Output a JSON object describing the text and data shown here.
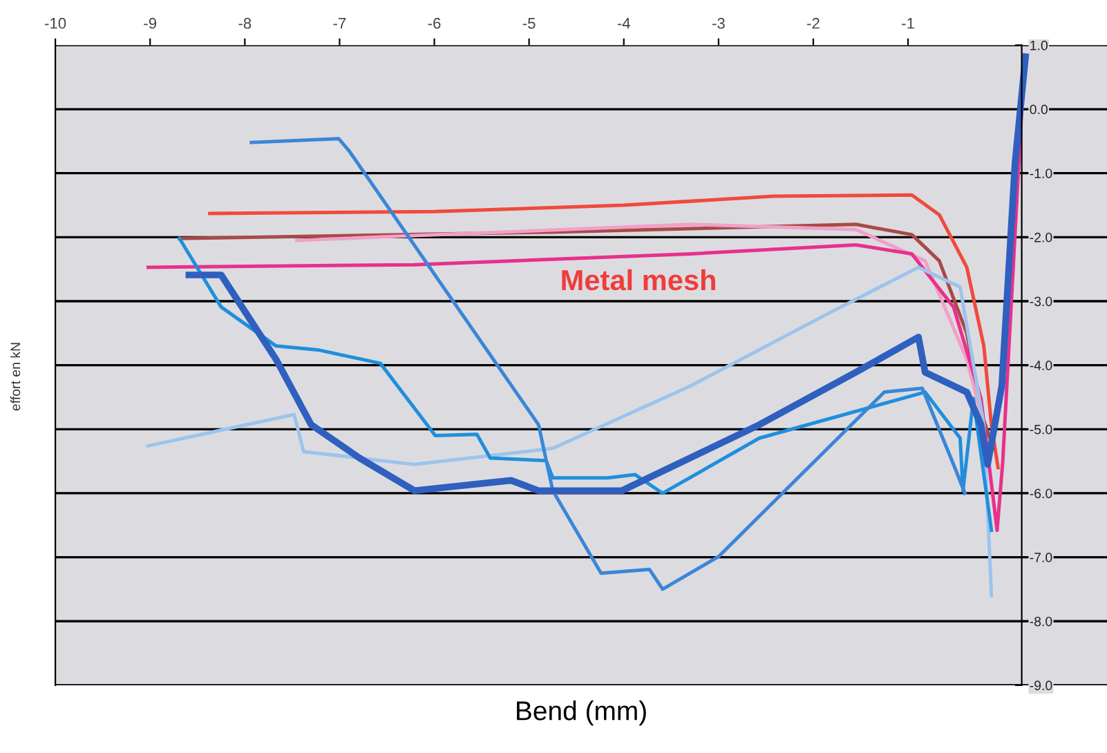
{
  "chart_data": {
    "type": "line",
    "xlabel": "Bend (mm)",
    "ylabel": "effort en kN",
    "xlim": [
      -10,
      1.1
    ],
    "ylim": [
      -9,
      1
    ],
    "xticks": [
      -10,
      -9,
      -8,
      -7,
      -6,
      -5,
      -4,
      -3,
      -2,
      -1
    ],
    "yticks": [
      {
        "value": 1,
        "label": "1.0"
      },
      {
        "value": 0,
        "label": "0.0"
      },
      {
        "value": -1,
        "label": "-1.0"
      },
      {
        "value": -2,
        "label": "-2.0"
      },
      {
        "value": -3,
        "label": "-3.0"
      },
      {
        "value": -4,
        "label": "-4.0"
      },
      {
        "value": -5,
        "label": "-5.0"
      },
      {
        "value": -6,
        "label": "-6.0"
      },
      {
        "value": -7,
        "label": "-7.0"
      },
      {
        "value": -8,
        "label": "-8.0"
      },
      {
        "value": -9,
        "label": "-9.0"
      }
    ],
    "grid": "y",
    "legend": false,
    "annotations": [
      "Metal mesh"
    ],
    "series": [
      {
        "color": "#f04a3c",
        "x": [
          -8.37,
          -6,
          -4,
          -2.42,
          -0.96,
          -0.67,
          -0.38,
          -0.2,
          -0.12,
          -0.05
        ],
        "values": [
          -1.63,
          -1.6,
          -1.5,
          -1.36,
          -1.34,
          -1.65,
          -2.47,
          -3.7,
          -4.93,
          -5.6
        ]
      },
      {
        "color": "#a84a48",
        "x": [
          -8.69,
          -4.75,
          -1.55,
          -0.96,
          -0.67,
          -0.38,
          -0.23,
          -0.1
        ],
        "values": [
          -2.02,
          -1.92,
          -1.8,
          -1.96,
          -2.37,
          -3.5,
          -4.73,
          -5.3
        ]
      },
      {
        "color": "#f2a0c8",
        "x": [
          -7.45,
          -3.29,
          -1.55,
          -0.82,
          -0.38,
          -0.2
        ],
        "values": [
          -2.05,
          -1.8,
          -1.88,
          -2.37,
          -3.91,
          -4.93
        ]
      },
      {
        "color": "#e8308c",
        "x": [
          -9.02,
          -6.21,
          -3.29,
          -1.55,
          -0.96,
          -0.52,
          -0.23,
          -0.06,
          0.0,
          0.2
        ],
        "values": [
          -2.47,
          -2.43,
          -2.26,
          -2.12,
          -2.26,
          -3.09,
          -4.52,
          -6.58,
          -5.5,
          0.0
        ]
      },
      {
        "color": "#9cc4ec",
        "x": [
          -9.02,
          -7.48,
          -7.38,
          -6.21,
          -4.75,
          -3.29,
          -1.84,
          -0.89,
          -0.45,
          -0.2,
          -0.12
        ],
        "values": [
          -5.26,
          -4.77,
          -5.35,
          -5.55,
          -5.3,
          -4.32,
          -3.19,
          -2.47,
          -2.78,
          -4.93,
          -7.6
        ]
      },
      {
        "color": "#1f8fdc",
        "x": [
          -8.69,
          -8.25,
          -7.67,
          -7.23,
          -6.57,
          -5.99,
          -5.55,
          -5.41,
          -4.82,
          -4.75,
          -4.17,
          -3.88,
          -3.59,
          -2.57,
          -0.82,
          -0.45,
          -0.42,
          -0.31,
          -0.12
        ],
        "values": [
          -2.02,
          -3.09,
          -3.7,
          -3.76,
          -3.97,
          -5.1,
          -5.08,
          -5.45,
          -5.49,
          -5.76,
          -5.76,
          -5.71,
          -6.0,
          -5.14,
          -4.42,
          -5.14,
          -5.96,
          -4.52,
          -6.58
        ]
      },
      {
        "color": "#3a86d8",
        "x": [
          -7.93,
          -7.01,
          -6.9,
          -4.9,
          -4.75,
          -4.24,
          -3.73,
          -3.59,
          -3.0,
          -1.25,
          -0.85,
          -0.52,
          -0.4
        ],
        "values": [
          -0.52,
          -0.46,
          -0.65,
          -4.93,
          -5.96,
          -7.25,
          -7.19,
          -7.5,
          -6.99,
          -4.42,
          -4.36,
          -5.55,
          -6.0
        ]
      },
      {
        "color": "#2f5fbf",
        "x": [
          -8.59,
          -8.25,
          -7.67,
          -7.3,
          -6.79,
          -6.21,
          -5.19,
          -4.9,
          -4.02,
          -2.57,
          -1.55,
          -0.89,
          -0.82,
          -0.38,
          -0.23,
          -0.16,
          -0.01,
          0.13,
          0.24
        ],
        "values": [
          -2.59,
          -2.59,
          -3.91,
          -4.93,
          -5.45,
          -5.96,
          -5.8,
          -5.96,
          -5.96,
          -4.93,
          -4.11,
          -3.56,
          -4.11,
          -4.42,
          -4.93,
          -5.55,
          -4.32,
          -0.83,
          0.82
        ]
      }
    ]
  }
}
